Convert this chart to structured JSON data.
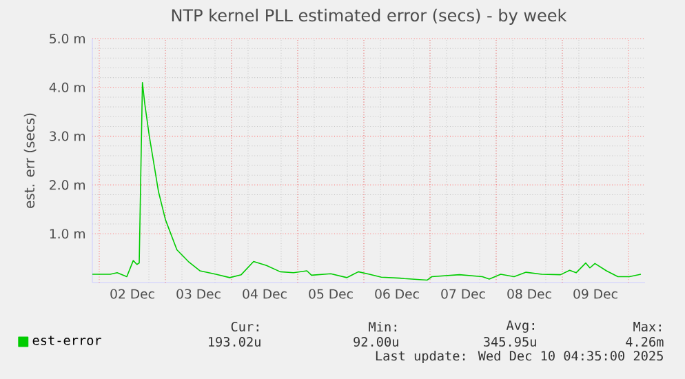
{
  "chart_data": {
    "type": "line",
    "title": "NTP kernel PLL estimated error (secs) - by week",
    "ylabel": "est. err (secs)",
    "x": [
      "2025-12-01T21:30",
      "2025-12-02T04:00",
      "2025-12-02T06:30",
      "2025-12-02T10:00",
      "2025-12-02T12:20",
      "2025-12-02T13:40",
      "2025-12-02T14:30",
      "2025-12-02T15:40",
      "2025-12-02T16:30",
      "2025-12-02T18:10",
      "2025-12-02T19:50",
      "2025-12-02T21:30",
      "2025-12-03T00:00",
      "2025-12-03T04:10",
      "2025-12-03T08:20",
      "2025-12-03T12:30",
      "2025-12-03T18:20",
      "2025-12-03T23:20",
      "2025-12-04T03:30",
      "2025-12-04T08:00",
      "2025-12-04T12:40",
      "2025-12-04T17:40",
      "2025-12-04T22:30",
      "2025-12-05T03:20",
      "2025-12-05T05:00",
      "2025-12-05T12:00",
      "2025-12-05T17:50",
      "2025-12-05T22:00",
      "2025-12-06T02:00",
      "2025-12-06T06:20",
      "2025-12-06T13:00",
      "2025-12-06T14:40",
      "2025-12-06T23:00",
      "2025-12-07T00:40",
      "2025-12-07T10:40",
      "2025-12-07T19:00",
      "2025-12-07T21:30",
      "2025-12-08T01:40",
      "2025-12-08T06:30",
      "2025-12-08T10:50",
      "2025-12-08T16:30",
      "2025-12-08T23:20",
      "2025-12-09T02:40",
      "2025-12-09T05:00",
      "2025-12-09T08:30",
      "2025-12-09T10:00",
      "2025-12-09T11:50",
      "2025-12-09T16:00",
      "2025-12-09T20:10",
      "2025-12-10T00:20",
      "2025-12-10T04:30"
    ],
    "series": [
      {
        "name": "est-error",
        "color": "#00cc00",
        "values": [
          0.17,
          0.17,
          0.2,
          0.12,
          0.45,
          0.37,
          0.4,
          4.1,
          3.67,
          3.0,
          2.43,
          1.86,
          1.29,
          0.67,
          0.43,
          0.24,
          0.17,
          0.1,
          0.16,
          0.43,
          0.35,
          0.22,
          0.2,
          0.24,
          0.15,
          0.18,
          0.1,
          0.22,
          0.17,
          0.11,
          0.09,
          0.08,
          0.05,
          0.12,
          0.16,
          0.12,
          0.07,
          0.17,
          0.12,
          0.21,
          0.17,
          0.16,
          0.25,
          0.2,
          0.4,
          0.3,
          0.39,
          0.24,
          0.12,
          0.12,
          0.17
        ]
      }
    ],
    "xlim": [
      "2025-12-01T21:30",
      "2025-12-10T06:00"
    ],
    "xticks": [
      {
        "value": "2025-12-02T12:00",
        "label": "02 Dec"
      },
      {
        "value": "2025-12-03T12:00",
        "label": "03 Dec"
      },
      {
        "value": "2025-12-04T12:00",
        "label": "04 Dec"
      },
      {
        "value": "2025-12-05T12:00",
        "label": "05 Dec"
      },
      {
        "value": "2025-12-06T12:00",
        "label": "06 Dec"
      },
      {
        "value": "2025-12-07T12:00",
        "label": "07 Dec"
      },
      {
        "value": "2025-12-08T12:00",
        "label": "08 Dec"
      },
      {
        "value": "2025-12-09T12:00",
        "label": "09 Dec"
      }
    ],
    "ylim": [
      0,
      5
    ],
    "yticks": [
      {
        "value": 1,
        "label": "1.0 m"
      },
      {
        "value": 2,
        "label": "2.0 m"
      },
      {
        "value": 3,
        "label": "3.0 m"
      },
      {
        "value": 4,
        "label": "4.0 m"
      },
      {
        "value": 5,
        "label": "5.0 m"
      }
    ],
    "grid": true,
    "legend": "bottom left",
    "marker": "none",
    "line_style": "solid",
    "annotations": [
      "Cur:",
      "Min:",
      "Avg:",
      "Max:",
      "193.02u",
      "92.00u",
      "345.95u",
      "4.26m",
      "Last update: Wed Dec 10 04:35:00 2025"
    ]
  }
}
